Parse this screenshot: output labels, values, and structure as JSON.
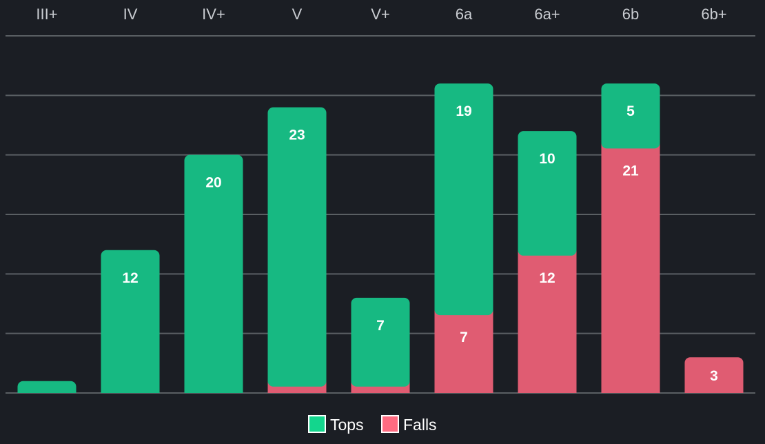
{
  "chart_data": {
    "type": "bar",
    "stacked": true,
    "categories": [
      "III+",
      "IV",
      "IV+",
      "V",
      "V+",
      "6a",
      "6a+",
      "6b",
      "6b+"
    ],
    "series": [
      {
        "name": "Falls",
        "color": "#e05c72",
        "values": [
          0,
          0,
          0,
          1,
          1,
          7,
          12,
          21,
          3
        ],
        "labels": [
          "",
          "",
          "",
          "",
          "",
          "7",
          "12",
          "21",
          "3"
        ]
      },
      {
        "name": "Tops",
        "color": "#17b982",
        "values": [
          1,
          12,
          20,
          23,
          7,
          19,
          10,
          5,
          0
        ],
        "labels": [
          "",
          "12",
          "20",
          "23",
          "7",
          "19",
          "10",
          "5",
          ""
        ]
      }
    ],
    "ylim": [
      0,
      30
    ],
    "grid": true,
    "category_axis_position": "top",
    "legend_position": "bottom",
    "legend": [
      {
        "name": "Tops",
        "swatch_color": "#13d68d"
      },
      {
        "name": "Falls",
        "swatch_color": "#ff6b81"
      }
    ]
  }
}
